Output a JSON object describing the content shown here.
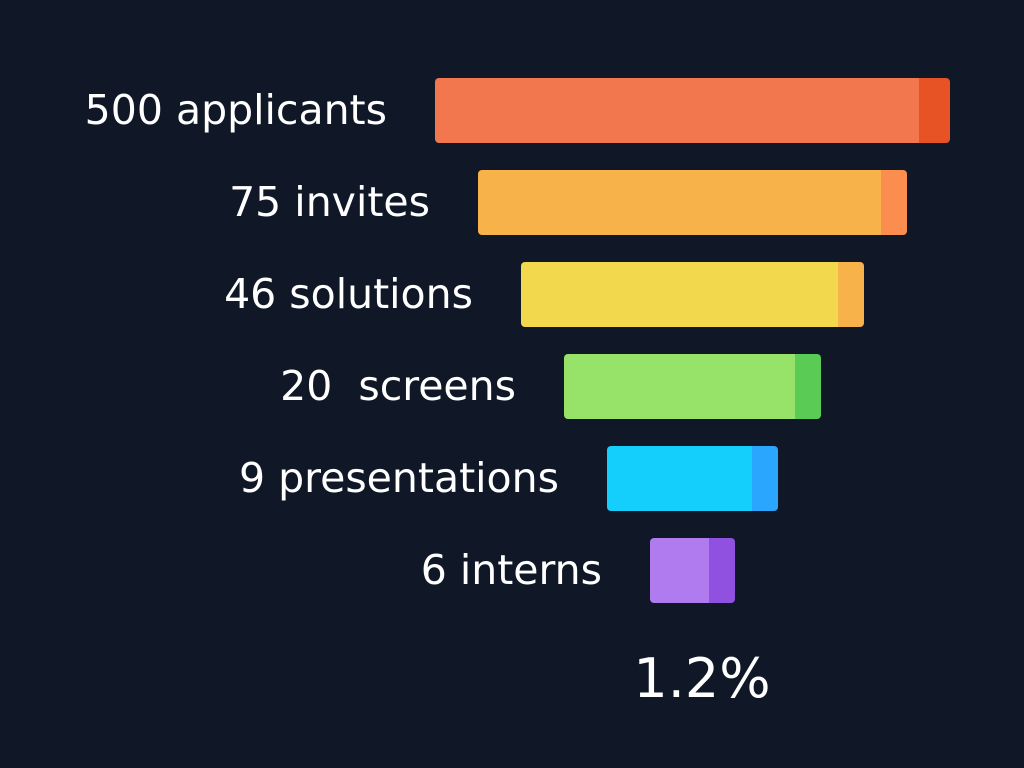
{
  "chart_data": {
    "type": "funnel",
    "title": "",
    "stages": [
      {
        "label": "500 applicants",
        "value": 500,
        "color": "#f2764e",
        "accent": "#e85325"
      },
      {
        "label": "75 invites",
        "value": 75,
        "color": "#f8b24a",
        "accent": "#fb8d4e"
      },
      {
        "label": "46 solutions",
        "value": 46,
        "color": "#f1d84c",
        "accent": "#f8b24a"
      },
      {
        "label": "20  screens",
        "value": 20,
        "color": "#97e369",
        "accent": "#5acc56"
      },
      {
        "label": "9 presentations",
        "value": 9,
        "color": "#14cefc",
        "accent": "#2ba6ff"
      },
      {
        "label": "6 interns",
        "value": 6,
        "color": "#b07bef",
        "accent": "#9050e0"
      }
    ],
    "summary": "1.2%"
  }
}
